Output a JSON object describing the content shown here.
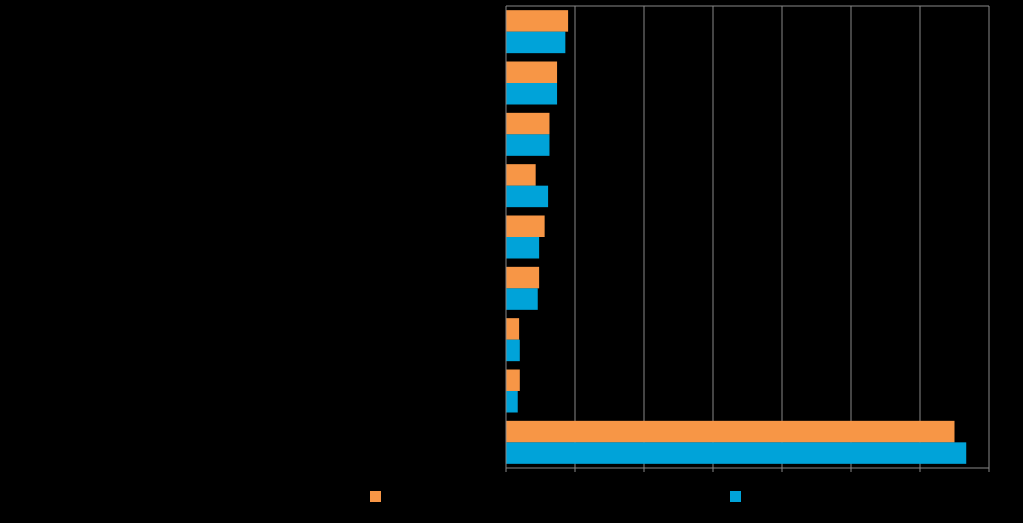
{
  "chart_data": {
    "type": "bar",
    "orientation": "horizontal",
    "categories": [
      "",
      "",
      "",
      "",
      "",
      "",
      "",
      "",
      ""
    ],
    "series": [
      {
        "name": "",
        "color": "#F79646",
        "values": [
          9,
          7.4,
          6.3,
          4.3,
          5.6,
          4.8,
          1.9,
          2.0,
          65
        ]
      },
      {
        "name": "",
        "color": "#00A3D9",
        "values": [
          8.6,
          7.4,
          6.3,
          6.1,
          4.8,
          4.6,
          2.0,
          1.7,
          66.7
        ]
      }
    ],
    "xlim": [
      0,
      70
    ],
    "xticks": [
      0,
      10,
      20,
      30,
      40,
      50,
      60,
      70
    ],
    "grid": true,
    "legend_position": "bottom",
    "background": "#000000",
    "gridline_color": "#888888"
  }
}
